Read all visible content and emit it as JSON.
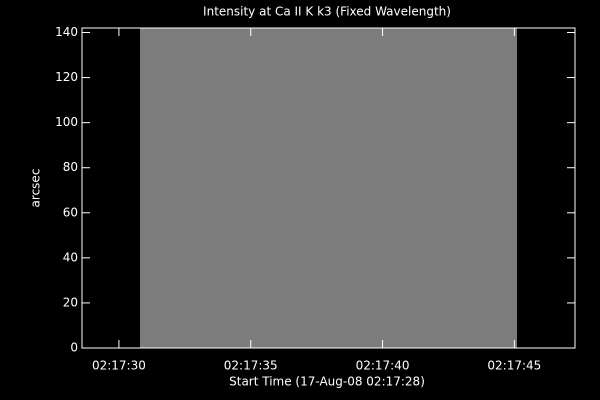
{
  "chart_data": {
    "type": "image",
    "title": "Intensity at Ca II K k3 (Fixed Wavelength)",
    "x_label": "Start Time (17-Aug-08 02:17:28)",
    "y_label": "arcsec",
    "xlim": [
      0.6,
      19.3
    ],
    "xticks": [
      {
        "value": 2,
        "label": "02:17:30"
      },
      {
        "value": 7,
        "label": "02:17:35"
      },
      {
        "value": 12,
        "label": "02:17:40"
      },
      {
        "value": 17,
        "label": "02:17:45"
      }
    ],
    "ylim": [
      0,
      142
    ],
    "yticks": [
      0,
      20,
      40,
      60,
      80,
      100,
      120,
      140
    ],
    "image_xlim": [
      2.8,
      17.1
    ],
    "image_color": "#7c7c7c",
    "axis_color": "#ffffff"
  }
}
